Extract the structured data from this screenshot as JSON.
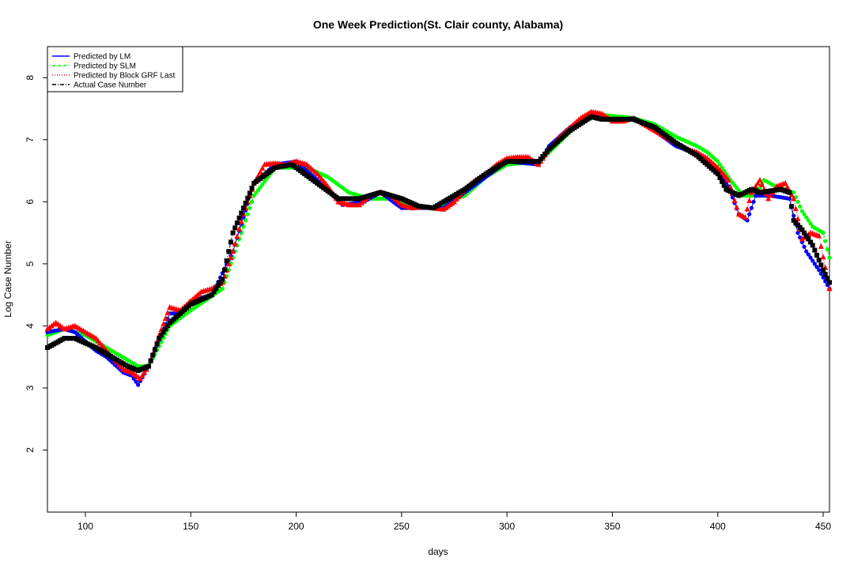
{
  "chart_data": {
    "type": "line",
    "title": "One Week Prediction(St. Clair county, Alabama)",
    "xlabel": "days",
    "ylabel": "Log Case Number",
    "xlim": [
      82,
      453
    ],
    "ylim": [
      1,
      8.5
    ],
    "xticks": [
      100,
      150,
      200,
      250,
      300,
      350,
      400,
      450
    ],
    "yticks": [
      2,
      3,
      4,
      5,
      6,
      7,
      8
    ],
    "legend_position": "top-left",
    "legend": [
      {
        "label": "Predicted by LM",
        "color": "#0000ff",
        "linestyle": "solid"
      },
      {
        "label": "Predicted by SLM",
        "color": "#00ff00",
        "linestyle": "dashed"
      },
      {
        "label": "Predicted by Block GRF Last",
        "color": "#ff0000",
        "linestyle": "dotted"
      },
      {
        "label": "Actual Case Number",
        "color": "#000000",
        "linestyle": "dotdash"
      }
    ],
    "series": [
      {
        "name": "Actual Case Number",
        "color": "#000000",
        "marker": "square",
        "x": [
          82,
          90,
          95,
          105,
          115,
          120,
          125,
          130,
          135,
          140,
          150,
          160,
          165,
          170,
          180,
          190,
          198,
          210,
          220,
          230,
          240,
          250,
          258,
          265,
          280,
          290,
          300,
          310,
          315,
          320,
          330,
          340,
          345,
          360,
          370,
          380,
          390,
          400,
          404,
          410,
          416,
          420,
          430,
          434,
          436,
          440,
          445,
          450,
          453
        ],
        "y": [
          3.65,
          3.8,
          3.8,
          3.65,
          3.45,
          3.35,
          3.28,
          3.35,
          3.8,
          4.05,
          4.35,
          4.5,
          4.75,
          5.5,
          6.3,
          6.55,
          6.6,
          6.3,
          6.05,
          6.05,
          6.15,
          6.05,
          5.93,
          5.9,
          6.2,
          6.45,
          6.65,
          6.65,
          6.65,
          6.85,
          7.15,
          7.37,
          7.33,
          7.33,
          7.2,
          6.95,
          6.75,
          6.45,
          6.2,
          6.1,
          6.2,
          6.15,
          6.2,
          6.15,
          5.7,
          5.55,
          5.3,
          4.9,
          4.7
        ]
      },
      {
        "name": "Predicted by SLM",
        "color": "#00ff00",
        "marker": "circle",
        "x": [
          82,
          90,
          95,
          100,
          105,
          115,
          120,
          125,
          130,
          140,
          150,
          165,
          180,
          190,
          205,
          215,
          225,
          235,
          245,
          255,
          265,
          280,
          290,
          300,
          315,
          320,
          335,
          345,
          360,
          370,
          380,
          390,
          395,
          400,
          406,
          412,
          418,
          422,
          430,
          436,
          440,
          445,
          450,
          453
        ],
        "y": [
          3.85,
          3.95,
          3.9,
          3.85,
          3.75,
          3.55,
          3.45,
          3.35,
          3.35,
          4.0,
          4.25,
          4.6,
          6.1,
          6.55,
          6.55,
          6.4,
          6.15,
          6.05,
          6.05,
          5.95,
          5.9,
          6.1,
          6.4,
          6.6,
          6.65,
          6.8,
          7.3,
          7.4,
          7.35,
          7.25,
          7.05,
          6.9,
          6.8,
          6.65,
          6.35,
          6.1,
          6.1,
          6.35,
          6.2,
          6.15,
          5.85,
          5.6,
          5.5,
          5.1
        ]
      },
      {
        "name": "Predicted by LM",
        "color": "#0000ff",
        "marker": "circle",
        "x": [
          82,
          90,
          95,
          105,
          110,
          118,
          122,
          125,
          130,
          140,
          145,
          150,
          160,
          170,
          180,
          190,
          200,
          210,
          222,
          232,
          240,
          250,
          260,
          270,
          280,
          290,
          300,
          315,
          320,
          330,
          340,
          345,
          352,
          360,
          370,
          380,
          392,
          400,
          405,
          410,
          414,
          418,
          425,
          434,
          438,
          442,
          448,
          453
        ],
        "y": [
          3.9,
          3.95,
          3.9,
          3.6,
          3.5,
          3.25,
          3.2,
          3.05,
          3.35,
          4.2,
          4.2,
          4.4,
          4.5,
          5.2,
          6.3,
          6.6,
          6.65,
          6.35,
          5.95,
          6.0,
          6.15,
          5.9,
          5.9,
          5.9,
          6.15,
          6.4,
          6.65,
          6.6,
          6.9,
          7.2,
          7.4,
          7.35,
          7.3,
          7.35,
          7.15,
          6.9,
          6.75,
          6.5,
          6.25,
          5.8,
          5.7,
          6.1,
          6.1,
          6.05,
          5.5,
          5.2,
          4.9,
          4.6
        ]
      },
      {
        "name": "Predicted by Block GRF Last",
        "color": "#ff0000",
        "marker": "triangle",
        "x": [
          82,
          86,
          90,
          95,
          100,
          105,
          110,
          118,
          122,
          126,
          130,
          135,
          140,
          145,
          150,
          155,
          160,
          165,
          170,
          175,
          180,
          185,
          190,
          195,
          200,
          205,
          210,
          215,
          220,
          225,
          230,
          235,
          240,
          245,
          250,
          255,
          260,
          265,
          270,
          275,
          280,
          285,
          290,
          295,
          300,
          305,
          310,
          315,
          320,
          325,
          330,
          335,
          340,
          345,
          350,
          355,
          360,
          365,
          370,
          375,
          380,
          385,
          390,
          395,
          400,
          405,
          410,
          413,
          416,
          420,
          424,
          428,
          432,
          436,
          440,
          444,
          448,
          453
        ],
        "y": [
          3.95,
          4.05,
          3.95,
          4.0,
          3.9,
          3.8,
          3.6,
          3.3,
          3.25,
          3.15,
          3.35,
          3.85,
          4.3,
          4.25,
          4.4,
          4.55,
          4.6,
          4.7,
          5.2,
          5.8,
          6.3,
          6.6,
          6.62,
          6.6,
          6.65,
          6.6,
          6.45,
          6.25,
          6.0,
          5.95,
          5.95,
          6.1,
          6.15,
          6.1,
          5.95,
          5.9,
          5.92,
          5.9,
          5.88,
          6.0,
          6.2,
          6.35,
          6.45,
          6.6,
          6.7,
          6.72,
          6.72,
          6.6,
          6.85,
          7.05,
          7.2,
          7.35,
          7.45,
          7.42,
          7.3,
          7.3,
          7.35,
          7.25,
          7.15,
          7.05,
          6.95,
          6.85,
          6.8,
          6.7,
          6.55,
          6.35,
          5.8,
          5.75,
          6.15,
          6.35,
          6.05,
          6.25,
          6.3,
          6.05,
          5.4,
          5.5,
          5.45,
          4.6
        ]
      }
    ]
  }
}
